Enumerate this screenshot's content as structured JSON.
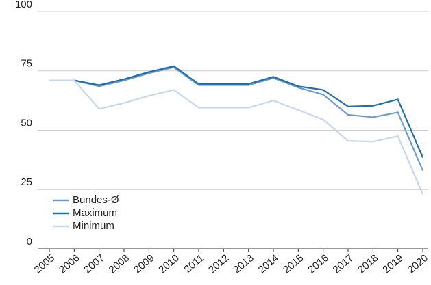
{
  "chart_data": {
    "type": "line",
    "categories": [
      "2005",
      "2006",
      "2007",
      "2008",
      "2009",
      "2010",
      "2011",
      "2012",
      "2013",
      "2014",
      "2015",
      "2016",
      "2017",
      "2018",
      "2019",
      "2020"
    ],
    "series": [
      {
        "name": "Bundes-Ø",
        "color": "#6b9bd1",
        "values": [
          71,
          71,
          68.5,
          71,
          74,
          76.5,
          69,
          69,
          69,
          72,
          68,
          65,
          56.5,
          55.5,
          57.5,
          33
        ]
      },
      {
        "name": "Maximum",
        "color": "#1f6fa6",
        "values": [
          71,
          71,
          69,
          71.5,
          74.5,
          77,
          69.5,
          69.5,
          69.5,
          72.5,
          68.5,
          67,
          60,
          60.3,
          63,
          38.5
        ]
      },
      {
        "name": "Minimum",
        "color": "#c6d7ee",
        "values": [
          71,
          71,
          59,
          61.5,
          64.5,
          67,
          59.5,
          59.5,
          59.5,
          62.5,
          58.5,
          54.5,
          45.5,
          45.2,
          47.5,
          23
        ]
      }
    ],
    "ylim": [
      0,
      100
    ],
    "yticks": [
      0,
      25,
      50,
      75,
      100
    ],
    "grid": true,
    "legend": "lower left"
  }
}
